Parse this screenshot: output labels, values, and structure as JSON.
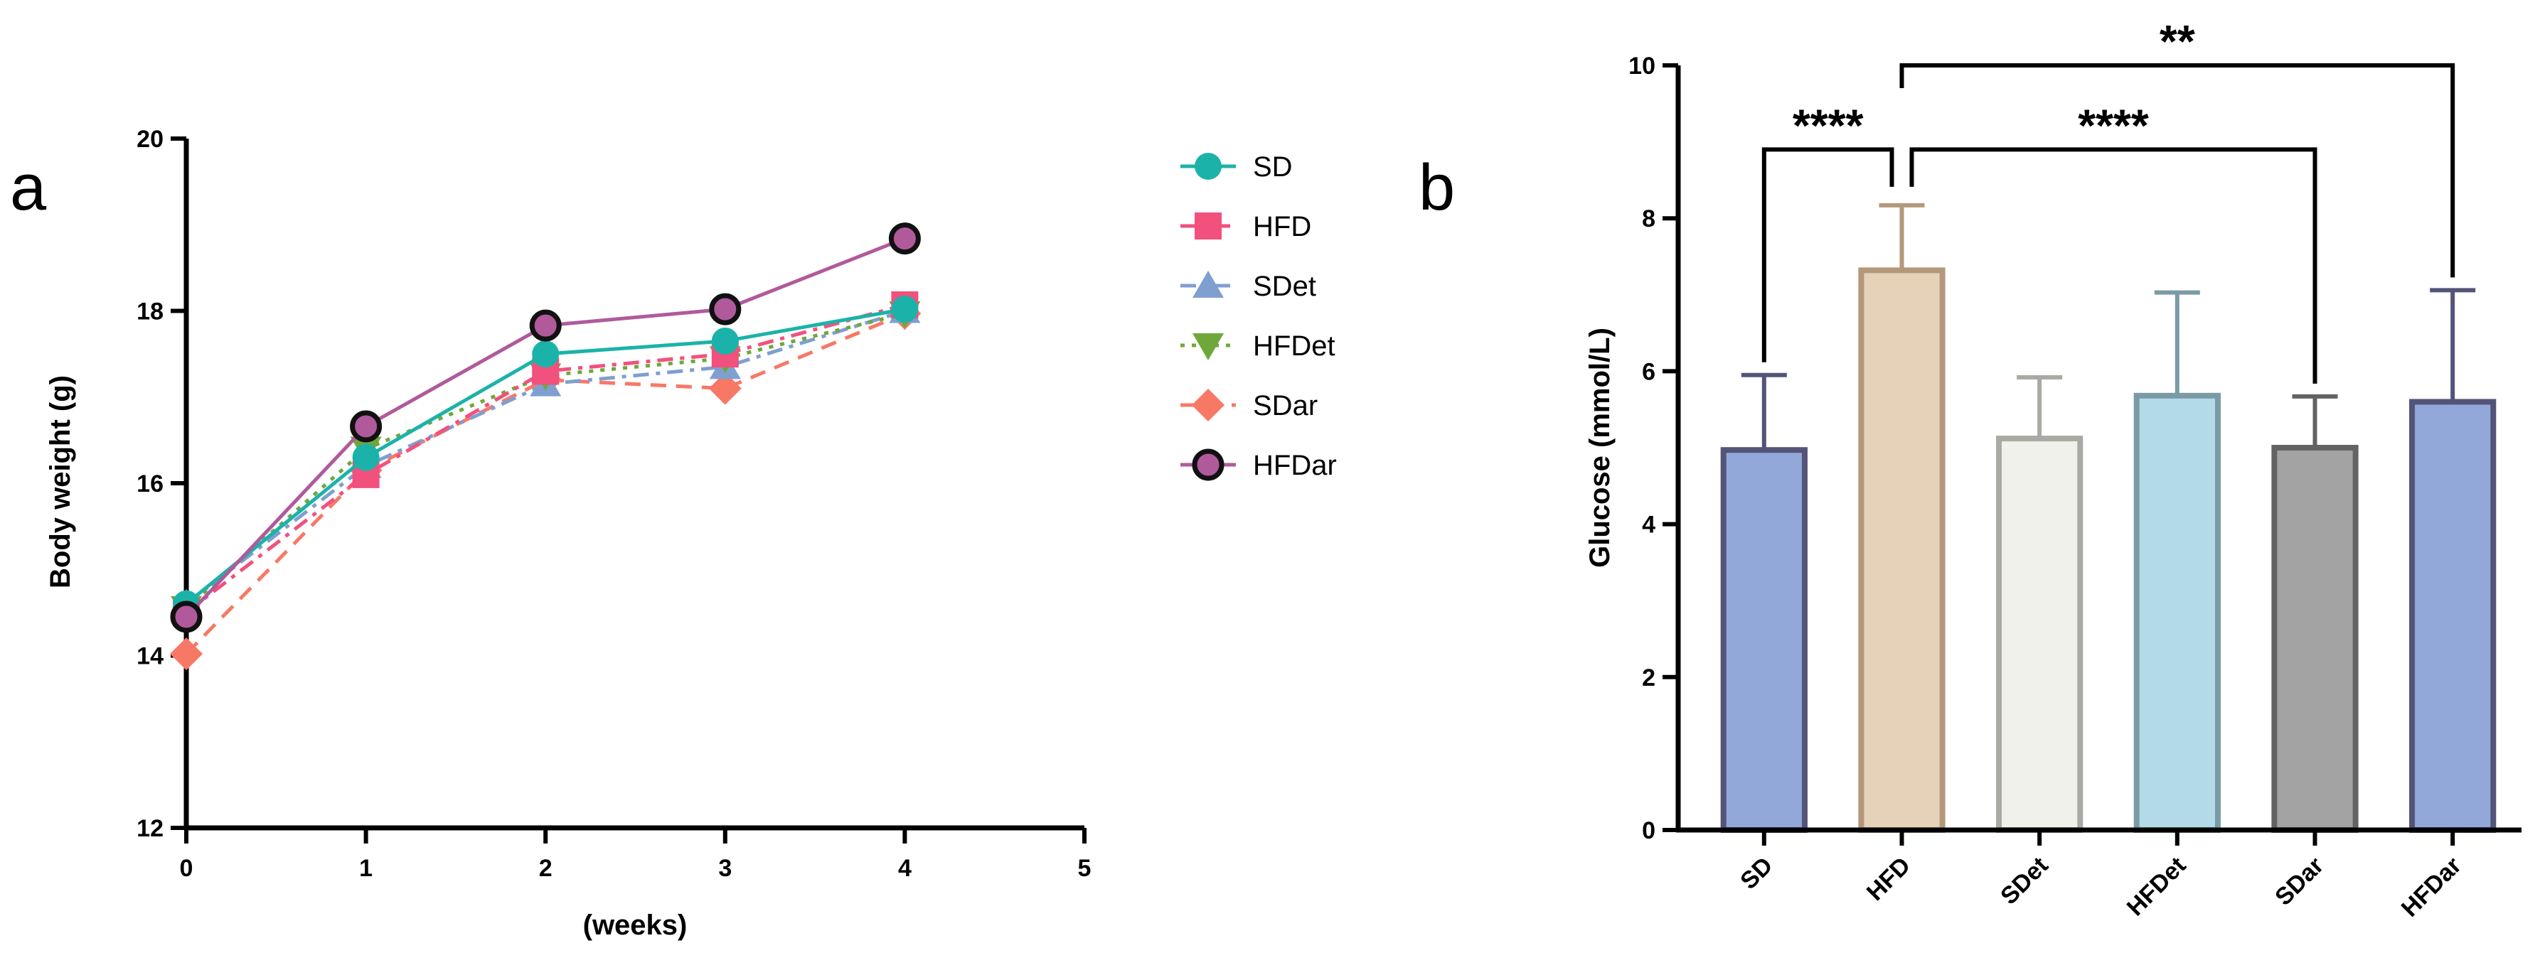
{
  "chart_data": [
    {
      "type": "line",
      "panel_label": "a",
      "title": "",
      "xlabel": "(weeks)",
      "ylabel": "Body weight (g)",
      "x": [
        0,
        1,
        2,
        3,
        4
      ],
      "xlim": [
        0,
        5
      ],
      "ylim": [
        12,
        20
      ],
      "xticks": [
        0,
        1,
        2,
        3,
        4,
        5
      ],
      "yticks": [
        12,
        14,
        16,
        18,
        20
      ],
      "grid": false,
      "legend_position": "right",
      "series": [
        {
          "name": "SD",
          "values": [
            14.6,
            16.3,
            17.5,
            17.65,
            18.02
          ],
          "color": "#1bb3a9",
          "marker": "circle",
          "dash": "solid"
        },
        {
          "name": "HFD",
          "values": [
            14.5,
            16.1,
            17.3,
            17.5,
            18.07
          ],
          "color": "#f2507d",
          "marker": "square",
          "dash": "dashdot"
        },
        {
          "name": "SDet",
          "values": [
            14.6,
            16.2,
            17.15,
            17.35,
            18.0
          ],
          "color": "#7f9fd0",
          "marker": "triangle-up",
          "dash": "dashdot"
        },
        {
          "name": "HFDet",
          "values": [
            14.55,
            16.4,
            17.25,
            17.45,
            17.97
          ],
          "color": "#6ea83a",
          "marker": "triangle-down",
          "dash": "dotted"
        },
        {
          "name": "SDar",
          "values": [
            14.02,
            16.15,
            17.2,
            17.1,
            17.97
          ],
          "color": "#f87866",
          "marker": "diamond",
          "dash": "dashed"
        },
        {
          "name": "HFDar",
          "values": [
            14.45,
            16.66,
            17.83,
            18.02,
            18.84
          ],
          "color": "#b05a9c",
          "marker": "circle-outlined",
          "dash": "solid"
        }
      ]
    },
    {
      "type": "bar",
      "panel_label": "b",
      "title": "",
      "xlabel": "",
      "ylabel": "Glucose (mmol/L)",
      "categories": [
        "SD",
        "HFD",
        "SDet",
        "HFDet",
        "SDar",
        "HFDar"
      ],
      "values": [
        4.97,
        7.32,
        5.12,
        5.68,
        5.0,
        5.6
      ],
      "error_upper": [
        5.95,
        8.17,
        5.92,
        7.03,
        5.67,
        7.06
      ],
      "ylim": [
        0,
        10
      ],
      "yticks": [
        0,
        2,
        4,
        6,
        8,
        10
      ],
      "grid": false,
      "fill_colors": [
        "#91a8d8",
        "#e5d2b8",
        "#f1f1ec",
        "#b3dae7",
        "#a3a3a3",
        "#91a8d8"
      ],
      "edge_colors": [
        "#545479",
        "#b3987a",
        "#aaaaa5",
        "#7a9aa6",
        "#636363",
        "#545479"
      ],
      "significance": [
        {
          "from": "SD",
          "to": "HFD",
          "label": "****",
          "y": 8.9
        },
        {
          "from": "HFD",
          "to": "SDar",
          "label": "****",
          "y": 8.9
        },
        {
          "from": "HFD",
          "to": "HFDar",
          "label": "**",
          "y": 10.0
        }
      ]
    }
  ]
}
